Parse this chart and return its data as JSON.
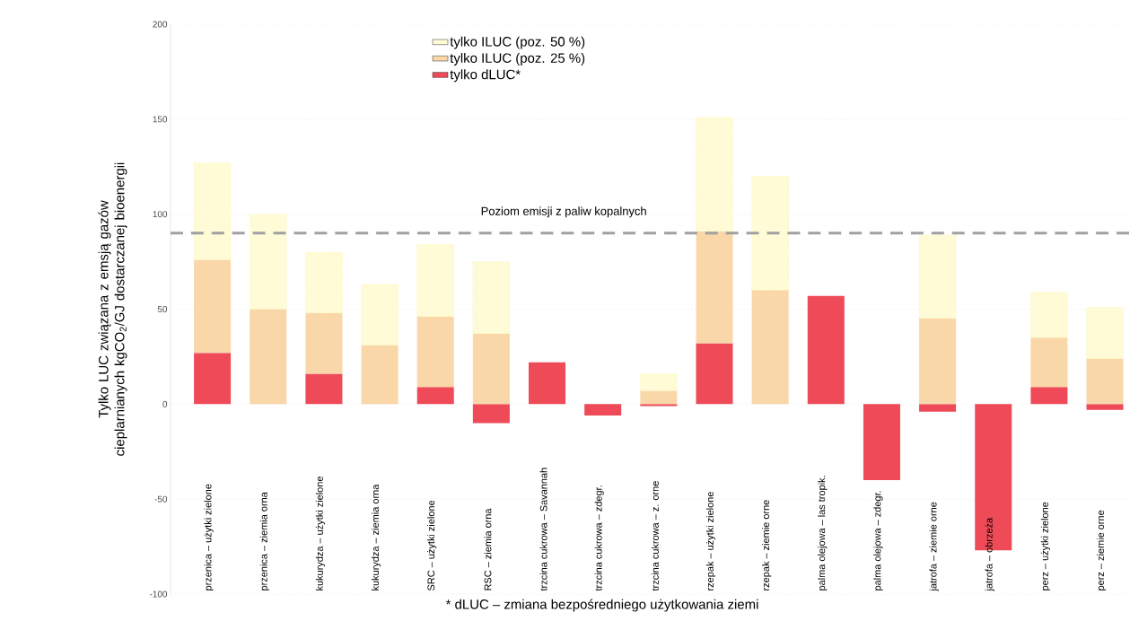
{
  "chart_data": {
    "type": "bar",
    "stacked": true,
    "ylabel": "Tylko LUC związana z emsją gazów cieplarnianych kgCO$_{2}$/GJ dostarczanej bioenergii",
    "categories": [
      "przenica – użytki zielone",
      "przenica – ziemia orna",
      "kukurydza – użytki zielone",
      "kukurydza – ziemia orna",
      "SRC – użytki zielone",
      "RSC – ziemia orna",
      "trzcina cukrowa – Savannah",
      "trzcina cukrowa – zdegr.",
      "trzcina cukrowa – z. orne",
      "rzepak – użytki zielone",
      "rzepak – ziemie orne",
      "palma olejowa – las tropik.",
      "palma olejowa – zdegr.",
      "jatrofa – ziemie orne",
      "jatrofa – obrzeża",
      "perz – użytki zielone",
      "perz – ziemie orne"
    ],
    "series": [
      {
        "name": "tylko dLUC*",
        "color": "#ee4a58",
        "values": [
          27,
          0,
          16,
          0,
          9,
          -10,
          22,
          -6,
          -1,
          32,
          0,
          57,
          -40,
          -4,
          -77,
          9,
          -3
        ]
      },
      {
        "name": "tylko ILUC (poz. 25 %)",
        "color": "#f9d7a8",
        "values": [
          49,
          50,
          32,
          31,
          37,
          37,
          0,
          0,
          7,
          59,
          60,
          0,
          0,
          45,
          0,
          26,
          24
        ]
      },
      {
        "name": "tylko ILUC (poz. 50 %)",
        "color": "#fffbd6",
        "values": [
          51,
          50,
          32,
          32,
          38,
          38,
          0,
          0,
          9,
          60,
          60,
          0,
          0,
          44,
          0,
          24,
          27
        ]
      }
    ],
    "ylim": [
      -100,
      200
    ],
    "yticks": [
      -100,
      -50,
      0,
      50,
      100,
      150,
      200
    ],
    "grid": "y",
    "legend": "top left",
    "ref_lines": [
      {
        "axis": "y",
        "value": 90,
        "label": "Poziom emisji z paliw kopalnych",
        "color": "#a0a0a0",
        "line_style": "dashed"
      }
    ],
    "annotations": [
      "* dLUC – zmiana bezpośredniego użytkowania ziemi"
    ]
  }
}
